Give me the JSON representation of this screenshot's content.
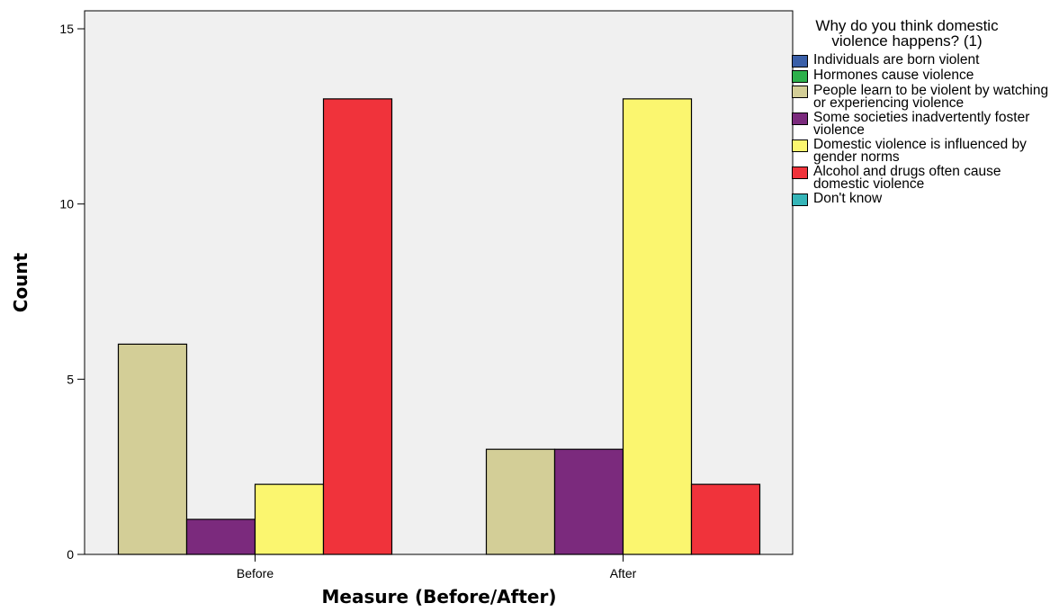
{
  "chart_data": {
    "type": "bar",
    "title": "",
    "xlabel": "Measure (Before/After)",
    "ylabel": "Count",
    "ylim": [
      0,
      15
    ],
    "yticks": [
      0,
      5,
      10,
      15
    ],
    "categories": [
      "Before",
      "After"
    ],
    "legend_title": "Why do you think domestic violence happens? (1)",
    "legend_placement": "right",
    "grid": false,
    "series": [
      {
        "name": "Individuals are born violent",
        "color": "#3a5fa8",
        "values": [
          0,
          0
        ]
      },
      {
        "name": "Hormones cause violence",
        "color": "#2db04b",
        "values": [
          0,
          0
        ]
      },
      {
        "name": "People learn to be violent by watching or experiencing violence",
        "color": "#d3ce97",
        "values": [
          6,
          3
        ]
      },
      {
        "name": "Some societies inadvertently foster violence",
        "color": "#7b2a7d",
        "values": [
          1,
          3
        ]
      },
      {
        "name": "Domestic violence is influenced by gender norms",
        "color": "#fbf66f",
        "values": [
          2,
          13
        ]
      },
      {
        "name": "Alcohol and drugs often cause domestic violence",
        "color": "#f0333b",
        "values": [
          13,
          2
        ]
      },
      {
        "name": "Don't know",
        "color": "#35b5b8",
        "values": [
          0,
          0
        ]
      }
    ]
  }
}
